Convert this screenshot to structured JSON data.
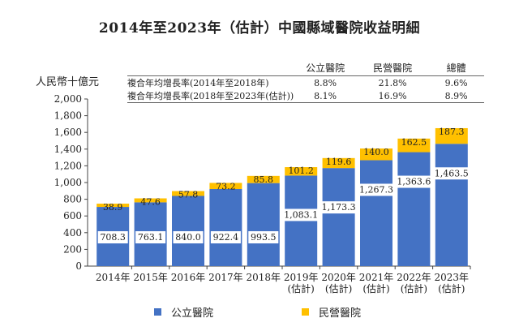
{
  "colors": {
    "public": "#4472C4",
    "private": "#FFC000",
    "label_bg": "#ffffff"
  },
  "chart_data": {
    "type": "bar",
    "stacked": true,
    "title": "2014年至2023年（估計）中國縣域醫院收益明細",
    "ylabel": "人民幣十億元",
    "ylim": [
      0,
      2000
    ],
    "yticks": [
      "0",
      "200",
      "400",
      "600",
      "800",
      "1,000",
      "1,200",
      "1,400",
      "1,600",
      "1,800",
      "2,000"
    ],
    "categories": [
      [
        "2014年"
      ],
      [
        "2015年"
      ],
      [
        "2016年"
      ],
      [
        "2017年"
      ],
      [
        "2018年"
      ],
      [
        "2019年",
        "(估計)"
      ],
      [
        "2020年",
        "(估計)"
      ],
      [
        "2021年",
        "(估計)"
      ],
      [
        "2022年",
        "(估計)"
      ],
      [
        "2023年",
        "(估計)"
      ]
    ],
    "series": [
      {
        "name": "公立醫院",
        "values": [
          708.3,
          763.1,
          840.0,
          922.4,
          993.5,
          1083.1,
          1173.3,
          1267.3,
          1363.6,
          1463.5
        ],
        "labels": [
          "708.3",
          "763.1",
          "840.0",
          "922.4",
          "993.5",
          "1,083.1",
          "1,173.3",
          "1,267.3",
          "1,363.6",
          "1,463.5"
        ]
      },
      {
        "name": "民營醫院",
        "values": [
          38.9,
          47.6,
          57.8,
          73.2,
          85.8,
          101.2,
          119.6,
          140.0,
          162.5,
          187.3
        ],
        "labels": [
          "38.9",
          "47.6",
          "57.8",
          "73.2",
          "85.8",
          "101.2",
          "119.6",
          "140.0",
          "162.5",
          "187.3"
        ]
      }
    ],
    "legend_position": "bottom",
    "grid": false
  },
  "cagr_table": {
    "headers": [
      "",
      "公立醫院",
      "民營醫院",
      "總體"
    ],
    "rows": [
      [
        "複合年均增長率(2014年至2018年)",
        "8.8%",
        "21.8%",
        "9.6%"
      ],
      [
        "複合年均增長率(2018年至2023年(估計))",
        "8.1%",
        "16.9%",
        "8.9%"
      ]
    ]
  }
}
